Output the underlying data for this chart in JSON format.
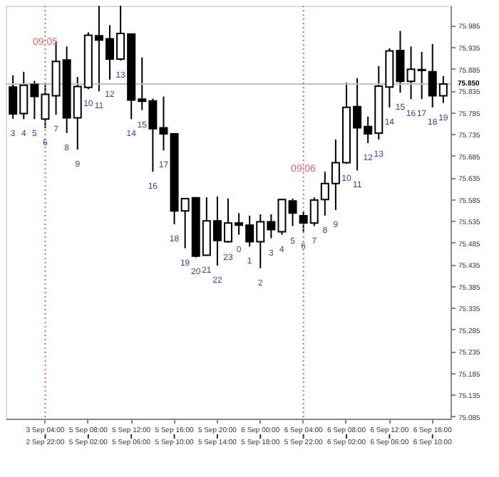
{
  "chart_data": {
    "type": "candlestick",
    "categories": [
      null,
      null,
      null,
      "3 Sep 04:00",
      null,
      null,
      null,
      "5 Sep 08:00",
      null,
      null,
      null,
      "5 Sep 12:00",
      null,
      null,
      null,
      "5 Sep 16:00",
      null,
      null,
      null,
      "5 Sep 20:00",
      null,
      null,
      null,
      "6 Sep 00:00",
      null,
      null,
      null,
      "6 Sep 04:00",
      null,
      null,
      null,
      "6 Sep 08:00",
      null,
      null,
      null,
      "6 Sep 12:00",
      null,
      null,
      null,
      "6 Sep 16:00",
      null
    ],
    "ohlc": [
      [
        75.843,
        75.87,
        75.77,
        75.781
      ],
      [
        75.782,
        75.878,
        75.769,
        75.847
      ],
      [
        75.849,
        75.857,
        75.769,
        75.821
      ],
      [
        75.769,
        75.848,
        75.748,
        75.826
      ],
      [
        75.823,
        75.946,
        75.779,
        75.902
      ],
      [
        75.905,
        75.936,
        75.737,
        75.772
      ],
      [
        75.772,
        75.866,
        75.699,
        75.844
      ],
      [
        75.842,
        75.969,
        75.838,
        75.962
      ],
      [
        75.961,
        76.03,
        75.833,
        75.951
      ],
      [
        75.954,
        75.985,
        75.86,
        75.907
      ],
      [
        75.907,
        76.03,
        75.904,
        75.966
      ],
      [
        75.965,
        75.966,
        75.769,
        75.813
      ],
      [
        75.815,
        75.911,
        75.79,
        75.81
      ],
      [
        75.811,
        75.816,
        75.648,
        75.747
      ],
      [
        75.749,
        75.821,
        75.697,
        75.735
      ],
      [
        75.735,
        75.737,
        75.527,
        75.558
      ],
      [
        75.558,
        75.588,
        75.472,
        75.586
      ],
      [
        75.588,
        75.589,
        75.451,
        75.454
      ],
      [
        75.456,
        75.589,
        75.455,
        75.535
      ],
      [
        75.535,
        75.591,
        75.432,
        75.49
      ],
      [
        75.487,
        75.586,
        75.485,
        75.53
      ],
      [
        75.53,
        75.553,
        75.503,
        75.525
      ],
      [
        75.525,
        75.547,
        75.476,
        75.487
      ],
      [
        75.487,
        75.55,
        75.426,
        75.533
      ],
      [
        75.533,
        75.55,
        75.495,
        75.515
      ],
      [
        75.51,
        75.586,
        75.503,
        75.584
      ],
      [
        75.581,
        75.586,
        75.523,
        75.553
      ],
      [
        75.547,
        75.557,
        75.51,
        75.53
      ],
      [
        75.53,
        75.589,
        75.523,
        75.583
      ],
      [
        75.584,
        75.648,
        75.547,
        75.621
      ],
      [
        75.621,
        75.722,
        75.56,
        75.669
      ],
      [
        75.669,
        75.853,
        75.666,
        75.796
      ],
      [
        75.798,
        75.863,
        75.651,
        75.749
      ],
      [
        75.752,
        75.775,
        75.714,
        75.735
      ],
      [
        75.737,
        75.891,
        75.722,
        75.845
      ],
      [
        75.843,
        75.932,
        75.796,
        75.926
      ],
      [
        75.927,
        75.972,
        75.83,
        75.856
      ],
      [
        75.856,
        75.936,
        75.815,
        75.884
      ],
      [
        75.881,
        75.924,
        75.815,
        75.883
      ],
      [
        75.878,
        75.942,
        75.796,
        75.823
      ],
      [
        75.823,
        75.868,
        75.806,
        75.85
      ]
    ],
    "value_labels": [
      "3",
      "4",
      "5",
      "6",
      "7",
      "8",
      "9",
      "10",
      "11",
      "12",
      "13",
      "14",
      "15",
      "16",
      "17",
      "18",
      "19",
      "20",
      "21",
      "22",
      "23",
      "0",
      "1",
      "2",
      "3",
      "4",
      "5",
      "6",
      "7",
      "8",
      "9",
      "10",
      "11",
      "12",
      "13",
      "14",
      "15",
      "16",
      "17",
      "18",
      "19"
    ],
    "ylim": [
      75.08,
      76.03
    ],
    "yticks": [
      75.085,
      75.135,
      75.185,
      75.235,
      75.285,
      75.335,
      75.385,
      75.435,
      75.485,
      75.535,
      75.585,
      75.635,
      75.685,
      75.735,
      75.785,
      75.835,
      75.885,
      75.935,
      75.985
    ],
    "ref_lines": [
      {
        "axis": "x",
        "value": "3 Sep 04:00",
        "label": "09:05",
        "color": "#e06666",
        "line_style": "dotted"
      },
      {
        "axis": "x",
        "value": "6 Sep 04:00",
        "label": "09:06",
        "color": "#e06666",
        "line_style": "dotted"
      },
      {
        "axis": "y",
        "value": 75.85,
        "label": "75.850",
        "color": "#c0c0c0",
        "line_style": "solid"
      }
    ],
    "annotations": [
      "2 Sep 22:00",
      "5 Sep 02:00",
      "5 Sep 06:00",
      "5 Sep 10:00",
      "5 Sep 14:00",
      "5 Sep 18:00",
      "5 Sep 22:00",
      "6 Sep 02:00",
      "6 Sep 06:00",
      "6 Sep 10:00"
    ],
    "grid": false
  }
}
